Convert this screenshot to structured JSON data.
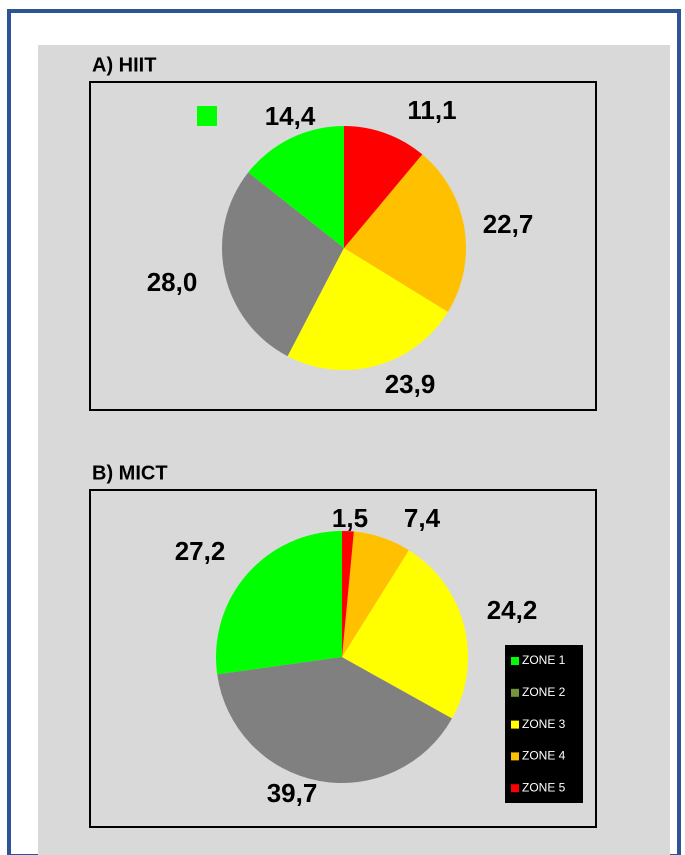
{
  "chart_data": [
    {
      "type": "pie",
      "title": "A) HIIT",
      "values": [
        14.4,
        28.0,
        23.9,
        22.7,
        11.1
      ],
      "value_labels": [
        "14,4",
        "28,0",
        "23,9",
        "22,7",
        "11,1"
      ],
      "colors": [
        "#00ff00",
        "#808080",
        "#ffff00",
        "#ffc000",
        "#ff0000"
      ]
    },
    {
      "type": "pie",
      "title": "B) MICT",
      "categories": [
        "ZONE 1",
        "ZONE 2",
        "ZONE 3",
        "ZONE 4",
        "ZONE 5"
      ],
      "values": [
        27.2,
        39.7,
        24.2,
        7.4,
        1.5
      ],
      "value_labels": [
        "27,2",
        "39,7",
        "24,2",
        "7,4",
        "1,5"
      ],
      "colors": [
        "#00ff00",
        "#808080",
        "#ffff00",
        "#ffc000",
        "#ff0000"
      ],
      "legend_colors": [
        "#00ff00",
        "#77933c",
        "#ffff00",
        "#ffc000",
        "#ff0000"
      ],
      "legend": "lower right"
    }
  ]
}
